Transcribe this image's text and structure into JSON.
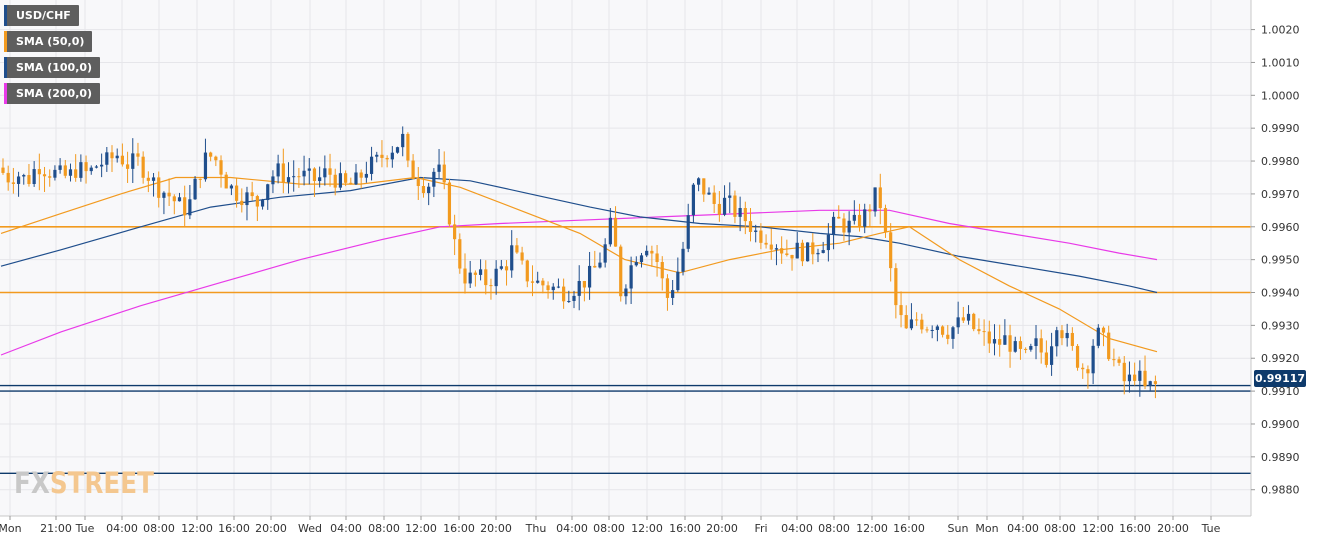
{
  "chart_data": {
    "type": "candlestick",
    "instrument": "USD/CHF",
    "legend": [
      {
        "label": "USD/CHF",
        "color": "#1f4e8c"
      },
      {
        "label": "SMA (50,0)",
        "color": "#f29a1f"
      },
      {
        "label": "SMA (100,0)",
        "color": "#1f4e8c"
      },
      {
        "label": "SMA (200,0)",
        "color": "#e83ae8"
      }
    ],
    "ylim": [
      0.9872,
      1.0029
    ],
    "y_ticks": [
      "1.0020",
      "1.0010",
      "1.0000",
      "0.9990",
      "0.9980",
      "0.9970",
      "0.9960",
      "0.9950",
      "0.9940",
      "0.9930",
      "0.9920",
      "0.9910",
      "0.9900",
      "0.9890",
      "0.9880"
    ],
    "x_ticks": [
      "Mon",
      "21:00",
      "Tue",
      "04:00",
      "08:00",
      "12:00",
      "16:00",
      "20:00",
      "Wed",
      "04:00",
      "08:00",
      "12:00",
      "16:00",
      "20:00",
      "Thu",
      "04:00",
      "08:00",
      "12:00",
      "16:00",
      "20:00",
      "Fri",
      "04:00",
      "08:00",
      "12:00",
      "16:00",
      "Sun",
      "Mon",
      "04:00",
      "08:00",
      "12:00",
      "16:00",
      "20:00",
      "Tue"
    ],
    "current_price": "0.99117",
    "horizontal_levels": [
      {
        "value": 0.996,
        "color": "#f29a1f"
      },
      {
        "value": 0.994,
        "color": "#f29a1f"
      },
      {
        "value": 0.99117,
        "color": "#0e3a6b"
      },
      {
        "value": 0.991,
        "color": "#0e3a6b"
      },
      {
        "value": 0.9885,
        "color": "#0e3a6b"
      }
    ],
    "price_path": [
      [
        0,
        0.9978
      ],
      [
        10,
        0.9975
      ],
      [
        20,
        0.9976
      ],
      [
        30,
        0.9974
      ],
      [
        40,
        0.9979
      ],
      [
        50,
        0.9977
      ],
      [
        60,
        0.9976
      ],
      [
        70,
        0.9975
      ],
      [
        80,
        0.9978
      ],
      [
        90,
        0.9976
      ],
      [
        100,
        0.9979
      ],
      [
        110,
        0.998
      ],
      [
        120,
        0.9982
      ],
      [
        130,
        0.9979
      ],
      [
        140,
        0.998
      ],
      [
        150,
        0.9976
      ],
      [
        160,
        0.9972
      ],
      [
        170,
        0.997
      ],
      [
        180,
        0.9967
      ],
      [
        190,
        0.9965
      ],
      [
        200,
        0.9975
      ],
      [
        210,
        0.9982
      ],
      [
        220,
        0.998
      ],
      [
        230,
        0.9973
      ],
      [
        240,
        0.997
      ],
      [
        250,
        0.9969
      ],
      [
        260,
        0.9967
      ],
      [
        270,
        0.9974
      ],
      [
        280,
        0.9977
      ],
      [
        290,
        0.9975
      ],
      [
        300,
        0.9976
      ],
      [
        310,
        0.9975
      ],
      [
        320,
        0.9974
      ],
      [
        330,
        0.9977
      ],
      [
        340,
        0.9974
      ],
      [
        350,
        0.9972
      ],
      [
        360,
        0.9974
      ],
      [
        370,
        0.9978
      ],
      [
        380,
        0.998
      ],
      [
        390,
        0.9983
      ],
      [
        400,
        0.9985
      ],
      [
        405,
        0.9988
      ],
      [
        410,
        0.9978
      ],
      [
        420,
        0.9975
      ],
      [
        430,
        0.9972
      ],
      [
        440,
        0.9979
      ],
      [
        445,
        0.9973
      ],
      [
        450,
        0.9968
      ],
      [
        455,
        0.9958
      ],
      [
        460,
        0.9952
      ],
      [
        465,
        0.9946
      ],
      [
        470,
        0.9944
      ],
      [
        480,
        0.9945
      ],
      [
        490,
        0.9943
      ],
      [
        500,
        0.9946
      ],
      [
        510,
        0.9949
      ],
      [
        515,
        0.9953
      ],
      [
        520,
        0.995
      ],
      [
        530,
        0.9945
      ],
      [
        540,
        0.9943
      ],
      [
        550,
        0.9942
      ],
      [
        560,
        0.9941
      ],
      [
        570,
        0.994
      ],
      [
        580,
        0.9942
      ],
      [
        590,
        0.9944
      ],
      [
        600,
        0.9948
      ],
      [
        610,
        0.9955
      ],
      [
        615,
        0.9962
      ],
      [
        620,
        0.995
      ],
      [
        625,
        0.9938
      ],
      [
        630,
        0.9945
      ],
      [
        640,
        0.9952
      ],
      [
        650,
        0.9955
      ],
      [
        660,
        0.995
      ],
      [
        665,
        0.9944
      ],
      [
        670,
        0.9938
      ],
      [
        680,
        0.9945
      ],
      [
        690,
        0.9958
      ],
      [
        695,
        0.997
      ],
      [
        700,
        0.9974
      ],
      [
        710,
        0.997
      ],
      [
        720,
        0.9966
      ],
      [
        730,
        0.9968
      ],
      [
        740,
        0.9964
      ],
      [
        750,
        0.9962
      ],
      [
        760,
        0.9958
      ],
      [
        770,
        0.9957
      ],
      [
        780,
        0.9955
      ],
      [
        790,
        0.9952
      ],
      [
        800,
        0.9953
      ],
      [
        810,
        0.9952
      ],
      [
        820,
        0.9954
      ],
      [
        830,
        0.9956
      ],
      [
        840,
        0.9962
      ],
      [
        850,
        0.996
      ],
      [
        860,
        0.9961
      ],
      [
        870,
        0.9964
      ],
      [
        880,
        0.997
      ],
      [
        885,
        0.9966
      ],
      [
        890,
        0.9955
      ],
      [
        895,
        0.9945
      ],
      [
        900,
        0.9935
      ],
      [
        910,
        0.9928
      ],
      [
        920,
        0.9932
      ],
      [
        930,
        0.993
      ],
      [
        940,
        0.9931
      ],
      [
        950,
        0.9928
      ],
      [
        960,
        0.993
      ],
      [
        970,
        0.9932
      ],
      [
        980,
        0.9928
      ],
      [
        990,
        0.9926
      ],
      [
        1000,
        0.9924
      ],
      [
        1010,
        0.9926
      ],
      [
        1020,
        0.9922
      ],
      [
        1030,
        0.992
      ],
      [
        1040,
        0.9924
      ],
      [
        1050,
        0.992
      ],
      [
        1055,
        0.9925
      ],
      [
        1060,
        0.9932
      ],
      [
        1070,
        0.9926
      ],
      [
        1080,
        0.992
      ],
      [
        1090,
        0.9916
      ],
      [
        1100,
        0.9928
      ],
      [
        1110,
        0.9924
      ],
      [
        1120,
        0.9918
      ],
      [
        1130,
        0.9912
      ],
      [
        1140,
        0.9916
      ],
      [
        1150,
        0.991
      ],
      [
        1155,
        0.99117
      ]
    ],
    "sma50": [
      [
        0,
        0.9958
      ],
      [
        60,
        0.9964
      ],
      [
        120,
        0.997
      ],
      [
        175,
        0.9975
      ],
      [
        230,
        0.9975
      ],
      [
        300,
        0.9973
      ],
      [
        360,
        0.9973
      ],
      [
        415,
        0.9975
      ],
      [
        460,
        0.9972
      ],
      [
        520,
        0.9965
      ],
      [
        580,
        0.9958
      ],
      [
        625,
        0.995
      ],
      [
        680,
        0.9946
      ],
      [
        730,
        0.995
      ],
      [
        780,
        0.9953
      ],
      [
        840,
        0.9955
      ],
      [
        880,
        0.9958
      ],
      [
        910,
        0.996
      ],
      [
        960,
        0.995
      ],
      [
        1010,
        0.9942
      ],
      [
        1060,
        0.9935
      ],
      [
        1110,
        0.9926
      ],
      [
        1158,
        0.9922
      ]
    ],
    "sma100": [
      [
        0,
        0.9948
      ],
      [
        60,
        0.9953
      ],
      [
        140,
        0.996
      ],
      [
        210,
        0.9966
      ],
      [
        280,
        0.9969
      ],
      [
        350,
        0.9971
      ],
      [
        420,
        0.9975
      ],
      [
        470,
        0.9974
      ],
      [
        530,
        0.997
      ],
      [
        590,
        0.9966
      ],
      [
        640,
        0.9963
      ],
      [
        700,
        0.9961
      ],
      [
        760,
        0.996
      ],
      [
        820,
        0.9958
      ],
      [
        860,
        0.9957
      ],
      [
        900,
        0.9955
      ],
      [
        960,
        0.9951
      ],
      [
        1020,
        0.9948
      ],
      [
        1080,
        0.9945
      ],
      [
        1130,
        0.9942
      ],
      [
        1158,
        0.994
      ]
    ],
    "sma200": [
      [
        0,
        0.9921
      ],
      [
        60,
        0.9928
      ],
      [
        140,
        0.9936
      ],
      [
        220,
        0.9943
      ],
      [
        300,
        0.995
      ],
      [
        380,
        0.9956
      ],
      [
        440,
        0.996
      ],
      [
        500,
        0.9961
      ],
      [
        580,
        0.9962
      ],
      [
        660,
        0.9963
      ],
      [
        740,
        0.9964
      ],
      [
        820,
        0.9965
      ],
      [
        890,
        0.9965
      ],
      [
        950,
        0.9961
      ],
      [
        1010,
        0.9958
      ],
      [
        1070,
        0.9955
      ],
      [
        1120,
        0.9952
      ],
      [
        1158,
        0.995
      ]
    ]
  },
  "logo": {
    "fx": "FX",
    "street": "STREET"
  }
}
